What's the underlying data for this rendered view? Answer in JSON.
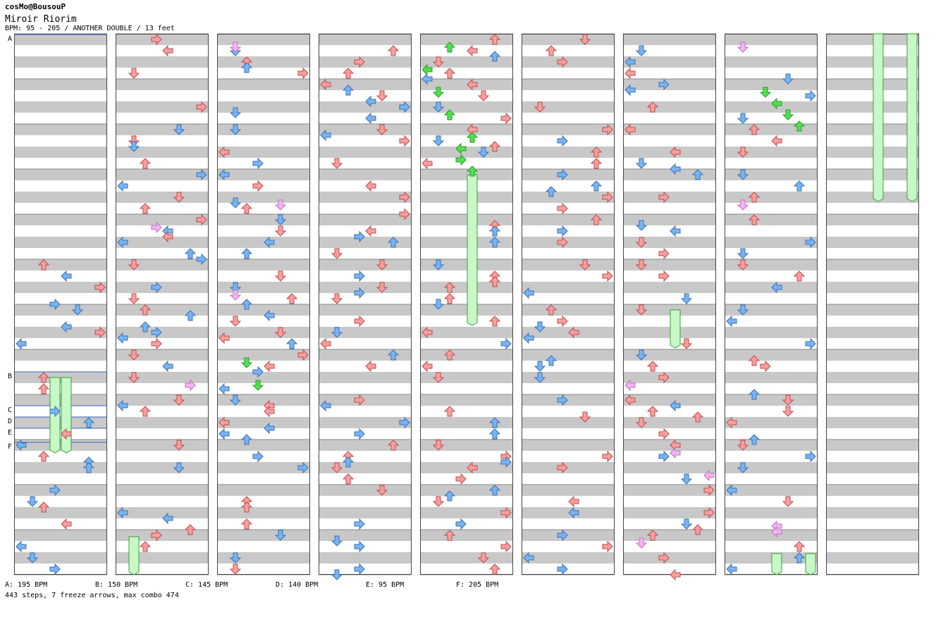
{
  "header": {
    "artist": "cosMo@BousouP",
    "title": "Miroir Riorim",
    "info": "BPM: 95 - 205 / ANOTHER DOUBLE / 13 feet"
  },
  "bpm_markers": [
    "A",
    "B",
    "C",
    "D",
    "E",
    "F"
  ],
  "bpm_legend": [
    {
      "marker": "A",
      "text": "A: 195 BPM"
    },
    {
      "marker": "B",
      "text": "B: 150 BPM"
    },
    {
      "marker": "C",
      "text": "C: 145 BPM"
    },
    {
      "marker": "D",
      "text": "D: 140 BPM"
    },
    {
      "marker": "E",
      "text": "E: 95 BPM"
    },
    {
      "marker": "F",
      "text": "F: 205 BPM"
    }
  ],
  "summary": "443 steps, 7 freeze arrows, max combo 474",
  "colors": {
    "arrow_red": "#f4a0a0",
    "arrow_red_stroke": "#c84848",
    "arrow_blue": "#78b4f0",
    "arrow_blue_stroke": "#3a70b8",
    "arrow_green": "#50e050",
    "arrow_pink": "#f4b4f4",
    "freeze": "#c8f8c8",
    "freeze_stroke": "#38a038",
    "band_gray": "#c8c8c8",
    "marker_line": "#3060c0"
  }
}
